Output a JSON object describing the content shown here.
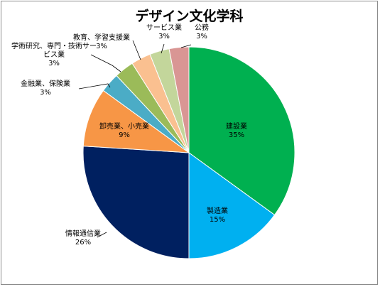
{
  "chart_data": {
    "type": "pie",
    "title": "デザイン文化学科",
    "slices": [
      {
        "label": "建設業",
        "value": 35,
        "value_label": "35%",
        "color": "#00b050"
      },
      {
        "label": "製造業",
        "value": 15,
        "value_label": "15%",
        "color": "#00b0f0"
      },
      {
        "label": "情報通信業",
        "value": 26,
        "value_label": "26%",
        "color": "#002060"
      },
      {
        "label": "卸売業、小売業",
        "value": 9,
        "value_label": "9%",
        "color": "#f79646"
      },
      {
        "label": "金融業、保険業",
        "value": 3,
        "value_label": "3%",
        "color": "#4bacc6"
      },
      {
        "label": "学術研究、専門・技術サービス業",
        "label_lines": [
          "学術研究、専門・技術サー",
          "ビス業"
        ],
        "value": 3,
        "value_label": "3%",
        "color": "#9bbb59"
      },
      {
        "label": "教育、学習支援業",
        "value": 3,
        "value_label": "3%",
        "color": "#fac090"
      },
      {
        "label": "サービス業",
        "value": 3,
        "value_label": "3%",
        "color": "#c3d69b"
      },
      {
        "label": "公務",
        "value": 3,
        "value_label": "3%",
        "color": "#d99694"
      }
    ],
    "legend": "none"
  }
}
